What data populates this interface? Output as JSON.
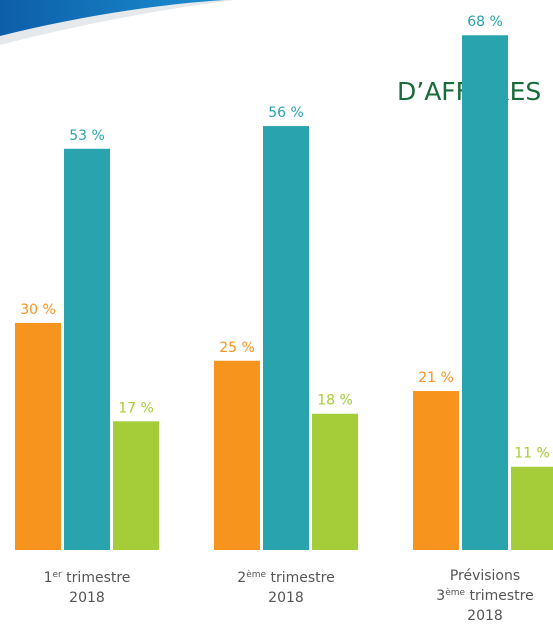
{
  "chart_data": {
    "type": "bar",
    "title": "D’AFFAIRES",
    "categories": [
      [
        [
          {
            "text": "1"
          },
          {
            "text": "er",
            "sup": true
          },
          {
            "text": " trimestre"
          }
        ],
        [
          {
            "text": "2018"
          }
        ]
      ],
      [
        [
          {
            "text": "2"
          },
          {
            "text": "ème",
            "sup": true
          },
          {
            "text": " trimestre"
          }
        ],
        [
          {
            "text": "2018"
          }
        ]
      ],
      [
        [
          {
            "text": "Prévisions"
          }
        ],
        [
          {
            "text": "3"
          },
          {
            "text": "ème",
            "sup": true
          },
          {
            "text": " trimestre"
          }
        ],
        [
          {
            "text": "2018"
          }
        ]
      ]
    ],
    "series": [
      {
        "color": "#f7941d",
        "values": [
          30,
          25,
          21
        ],
        "value_labels": [
          "30 %",
          "25 %",
          "21 %"
        ]
      },
      {
        "color": "#29a3ae",
        "values": [
          53,
          56,
          68
        ],
        "value_labels": [
          "53 %",
          "56 %",
          "68 %"
        ]
      },
      {
        "color": "#a5cd39",
        "values": [
          17,
          18,
          11
        ],
        "value_labels": [
          "17 %",
          "18 %",
          "11 %"
        ]
      }
    ]
  }
}
